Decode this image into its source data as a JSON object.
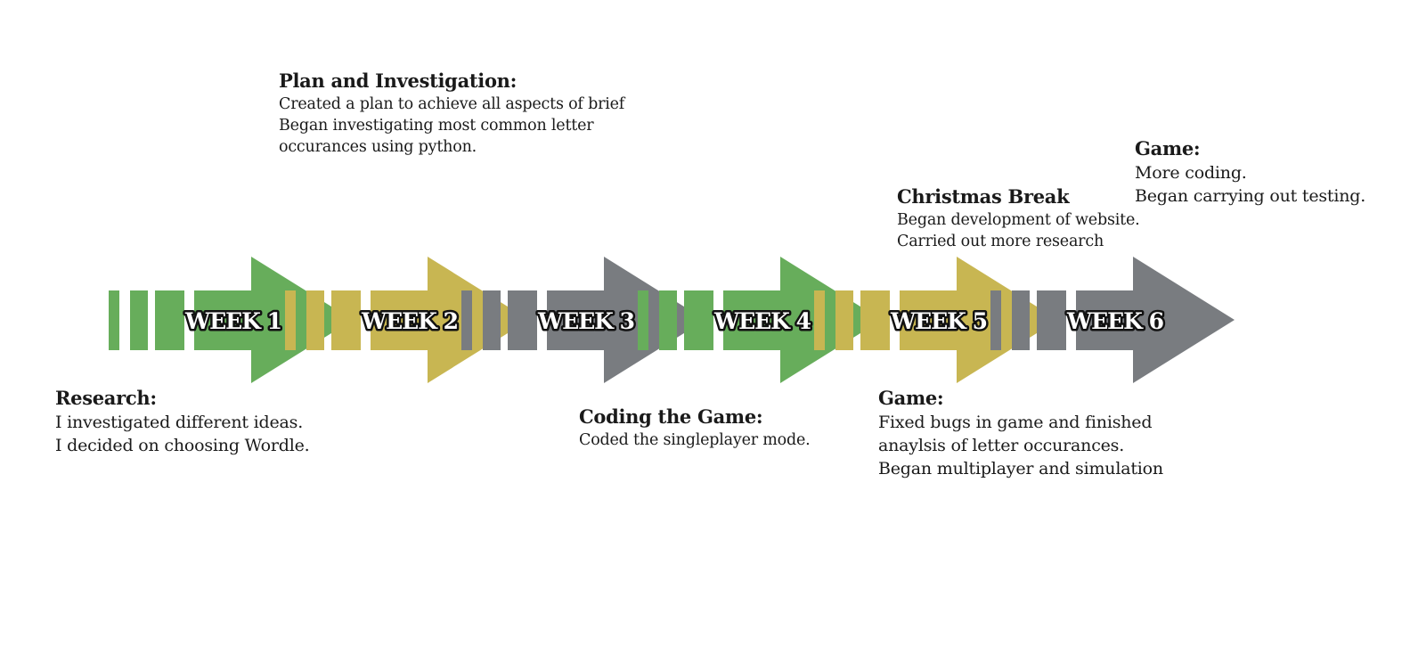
{
  "colors": {
    "green": "#67ad5b",
    "yellow": "#c8b652",
    "grey": "#797c80"
  },
  "weeks": [
    {
      "label": "WEEK 1",
      "color": "green"
    },
    {
      "label": "WEEK 2",
      "color": "yellow"
    },
    {
      "label": "WEEK 3",
      "color": "grey"
    },
    {
      "label": "WEEK 4",
      "color": "green"
    },
    {
      "label": "WEEK 5",
      "color": "yellow"
    },
    {
      "label": "WEEK 6",
      "color": "grey"
    }
  ],
  "notes": {
    "research": {
      "title": "Research:",
      "lines": [
        "I investigated different ideas.",
        "I decided on choosing Wordle."
      ]
    },
    "plan": {
      "title": "Plan and Investigation:",
      "lines": [
        "Created  a plan to achieve all aspects of brief",
        "Began investigating most common letter",
        "occurances using python."
      ]
    },
    "coding": {
      "title": "Coding the Game:",
      "lines": [
        "Coded the singleplayer mode."
      ]
    },
    "christmas": {
      "title": "Christmas Break",
      "lines": [
        "Began development of website.",
        "Carried out more research"
      ]
    },
    "game_bugs": {
      "title": "Game:",
      "lines": [
        "Fixed bugs in game and finished",
        "anaylsis of letter occurances.",
        "Began multiplayer and simulation"
      ]
    },
    "game_testing": {
      "title": "Game:",
      "lines": [
        "More coding.",
        "Began carrying out testing."
      ]
    }
  }
}
